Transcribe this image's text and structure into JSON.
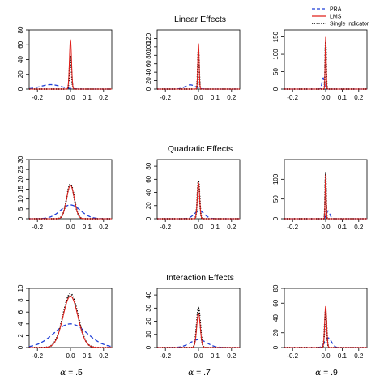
{
  "chart_data": {
    "type": "line",
    "layout": "3x3 grid of density plots",
    "row_titles": [
      "Linear Effects",
      "Quadratic Effects",
      "Interaction Effects"
    ],
    "column_labels": [
      {
        "symbol": "α",
        "text": " = .5"
      },
      {
        "symbol": "α",
        "text": " = .7"
      },
      {
        "symbol": "α",
        "text": " = .9"
      }
    ],
    "legend": {
      "placement": "top-right",
      "entries": [
        {
          "name": "PRA",
          "color": "#1f3fd6",
          "style": "dashed"
        },
        {
          "name": "LMS",
          "color": "#e0201b",
          "style": "solid"
        },
        {
          "name": "Single Indicator",
          "color": "#000000",
          "style": "dotted"
        }
      ]
    },
    "x_range": [
      -0.25,
      0.25
    ],
    "x_ticks": [
      -0.2,
      0.0,
      0.1,
      0.2
    ],
    "x_tick_labels": [
      "-0.2",
      "0.0",
      "0.1",
      "0.2"
    ],
    "panels": [
      {
        "row": 0,
        "col": 0,
        "ylim": [
          0,
          80
        ],
        "y_ticks": [
          0,
          20,
          40,
          60,
          80
        ],
        "PRA": {
          "mean": -0.12,
          "sd": 0.06,
          "peak": 6
        },
        "LMS": {
          "mean": 0.0,
          "sd": 0.006,
          "peak": 67
        },
        "Single Indicator": {
          "mean": 0.0,
          "sd": 0.006,
          "peak": 45
        }
      },
      {
        "row": 0,
        "col": 1,
        "ylim": [
          0,
          140
        ],
        "y_ticks": [
          0,
          20,
          40,
          60,
          80,
          100,
          120
        ],
        "PRA": {
          "mean": -0.05,
          "sd": 0.03,
          "peak": 10
        },
        "LMS": {
          "mean": 0.0,
          "sd": 0.004,
          "peak": 108
        },
        "Single Indicator": {
          "mean": 0.0,
          "sd": 0.004,
          "peak": 95
        }
      },
      {
        "row": 0,
        "col": 2,
        "ylim": [
          0,
          170
        ],
        "y_ticks": [
          0,
          50,
          100,
          150
        ],
        "PRA": {
          "mean": -0.015,
          "sd": 0.007,
          "peak": 32
        },
        "LMS": {
          "mean": 0.0,
          "sd": 0.003,
          "peak": 150
        },
        "Single Indicator": {
          "mean": 0.0,
          "sd": 0.003,
          "peak": 140
        }
      },
      {
        "row": 1,
        "col": 0,
        "ylim": [
          0,
          30
        ],
        "y_ticks": [
          0,
          5,
          10,
          15,
          20,
          25,
          30
        ],
        "PRA": {
          "mean": 0.0,
          "sd": 0.06,
          "peak": 7
        },
        "LMS": {
          "mean": 0.0,
          "sd": 0.023,
          "peak": 17
        },
        "Single Indicator": {
          "mean": 0.0,
          "sd": 0.023,
          "peak": 17.5
        }
      },
      {
        "row": 1,
        "col": 1,
        "ylim": [
          0,
          90
        ],
        "y_ticks": [
          0,
          20,
          40,
          60,
          80
        ],
        "PRA": {
          "mean": 0.005,
          "sd": 0.03,
          "peak": 12
        },
        "LMS": {
          "mean": 0.0,
          "sd": 0.007,
          "peak": 55
        },
        "Single Indicator": {
          "mean": 0.0,
          "sd": 0.007,
          "peak": 57
        }
      },
      {
        "row": 1,
        "col": 2,
        "ylim": [
          0,
          150
        ],
        "y_ticks": [
          0,
          50,
          100
        ],
        "PRA": {
          "mean": 0.015,
          "sd": 0.01,
          "peak": 20
        },
        "LMS": {
          "mean": 0.0,
          "sd": 0.003,
          "peak": 112
        },
        "Single Indicator": {
          "mean": 0.0,
          "sd": 0.003,
          "peak": 118
        }
      },
      {
        "row": 2,
        "col": 0,
        "ylim": [
          0,
          10
        ],
        "y_ticks": [
          0,
          2,
          4,
          6,
          8,
          10
        ],
        "PRA": {
          "mean": 0.0,
          "sd": 0.1,
          "peak": 4
        },
        "LMS": {
          "mean": 0.0,
          "sd": 0.045,
          "peak": 8.7
        },
        "Single Indicator": {
          "mean": 0.0,
          "sd": 0.045,
          "peak": 9.1
        }
      },
      {
        "row": 2,
        "col": 1,
        "ylim": [
          0,
          45
        ],
        "y_ticks": [
          0,
          10,
          20,
          30,
          40
        ],
        "PRA": {
          "mean": 0.0,
          "sd": 0.05,
          "peak": 6
        },
        "LMS": {
          "mean": 0.0,
          "sd": 0.011,
          "peak": 26
        },
        "Single Indicator": {
          "mean": 0.0,
          "sd": 0.011,
          "peak": 30
        }
      },
      {
        "row": 2,
        "col": 2,
        "ylim": [
          0,
          80
        ],
        "y_ticks": [
          0,
          20,
          40,
          60,
          80
        ],
        "PRA": {
          "mean": 0.015,
          "sd": 0.02,
          "peak": 13
        },
        "LMS": {
          "mean": 0.0,
          "sd": 0.006,
          "peak": 56
        },
        "Single Indicator": {
          "mean": 0.0,
          "sd": 0.006,
          "peak": 50
        }
      }
    ]
  }
}
